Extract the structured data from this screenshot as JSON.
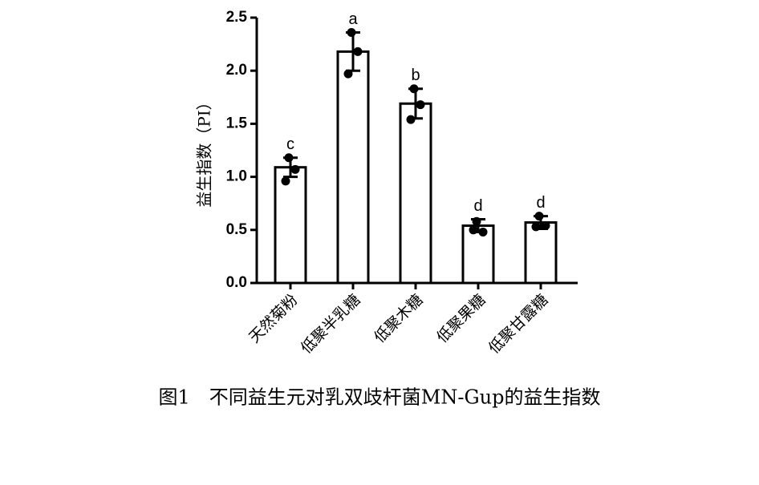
{
  "chart_data": {
    "type": "bar",
    "caption": "图1　不同益生元对乳双歧杆菌MN-Gup的益生指数",
    "y_label": "益生指数（PI）",
    "categories": [
      "天然菊粉",
      "低聚半乳糖",
      "低聚木糖",
      "低聚果糖",
      "低聚甘露糖"
    ],
    "values": [
      1.09,
      2.18,
      1.69,
      0.54,
      0.57
    ],
    "errors": [
      0.09,
      0.18,
      0.14,
      0.06,
      0.06
    ],
    "points": [
      [
        1.18,
        1.07,
        0.96
      ],
      [
        2.36,
        2.18,
        1.97
      ],
      [
        1.83,
        1.68,
        1.54
      ],
      [
        0.58,
        0.48,
        0.5
      ],
      [
        0.63,
        0.54,
        0.53
      ]
    ],
    "annotations": [
      "c",
      "a",
      "b",
      "d",
      "d"
    ],
    "color": "#ffffff",
    "ylim": [
      0,
      2.5
    ],
    "yticks": [
      {
        "value": 0,
        "label": "0.0"
      },
      0.5,
      {
        "value": 1,
        "label": "1.0"
      },
      1.5,
      {
        "value": 2,
        "label": "2.0"
      },
      2.5
    ]
  }
}
